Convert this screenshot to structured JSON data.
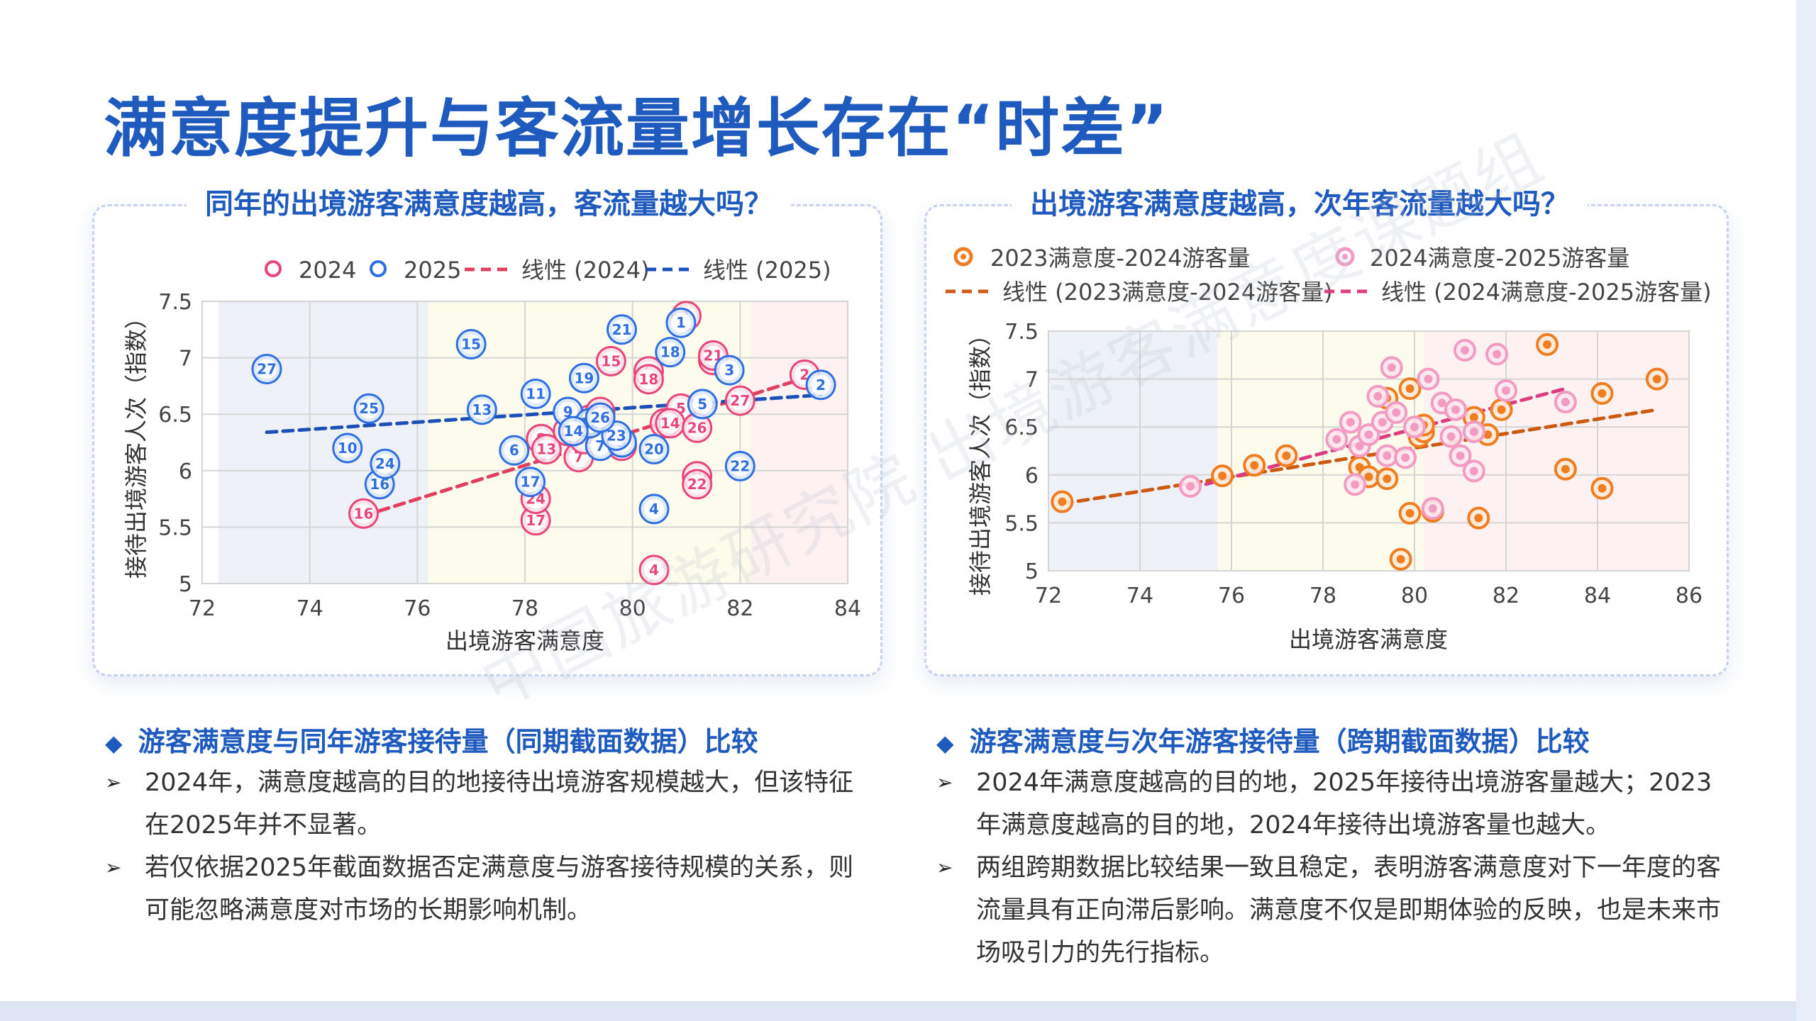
{
  "page_title": "满意度提升与客流量增长存在“时差”",
  "left_panel": {
    "title": "同年的出境游客满意度越高，客流量越大吗？",
    "heading": "游客满意度与同年游客接待量（同期截面数据）比较",
    "bullets": [
      "2024年，满意度越高的目的地接待出境游客规模越大，但该特征在2025年并不显著。",
      "若仅依据2025年截面数据否定满意度与游客接待规模的关系，则可能忽略满意度对市场的长期影响机制。"
    ]
  },
  "right_panel": {
    "title": "出境游客满意度越高，次年客流量越大吗？",
    "heading": "游客满意度与次年游客接待量（跨期截面数据）比较",
    "bullets": [
      "2024年满意度越高的目的地，2025年接待出境游客量越大；2023年满意度越高的目的地，2024年接待出境游客量也越大。",
      "两组跨期数据比较结果一致且稳定，表明游客满意度对下一年度的客流量具有正向滞后影响。满意度不仅是即期体验的反映，也是未来市场吸引力的先行指标。"
    ]
  },
  "watermark": "中国旅游研究院 出境游客满意度课题组",
  "colors": {
    "title_blue": "#1f5bbf",
    "s2024": "#e8457a",
    "s2025": "#2f6fe0",
    "trend2024": "#e0405e",
    "trend2025": "#1c50b8",
    "orange": "#ef7d22",
    "trend_orange": "#cc5a12",
    "pink_light": "#f39bc3",
    "trend_pink": "#dc3c80"
  },
  "chart_data": [
    {
      "type": "scatter",
      "xlabel": "出境游客满意度",
      "ylabel": "接待出境游客人次（指数）",
      "xlim": [
        72,
        84
      ],
      "ylim": [
        5,
        7.5
      ],
      "xticks": [
        72,
        74,
        76,
        78,
        80,
        82,
        84
      ],
      "yticks": [
        5,
        5.5,
        6,
        6.5,
        7,
        7.5
      ],
      "ytick_labels": [
        "5",
        "5.5",
        "6",
        "6.5",
        "7",
        "7.5"
      ],
      "grid": true,
      "legend_position": "top",
      "bands": [
        {
          "from": 72.3,
          "to": 76.2,
          "color": "#eef1f8"
        },
        {
          "from": 76.2,
          "to": 82.2,
          "color": "#fdfbeb"
        },
        {
          "from": 82.2,
          "to": 84,
          "color": "#fdf1f2"
        }
      ],
      "series": [
        {
          "name": "2024",
          "points": [
            {
              "id": "1",
              "x": 81.0,
              "y": 7.37
            },
            {
              "id": "2",
              "x": 83.2,
              "y": 6.85
            },
            {
              "id": "3",
              "x": 81.5,
              "y": 6.98
            },
            {
              "id": "4",
              "x": 80.4,
              "y": 5.12
            },
            {
              "id": "5",
              "x": 80.9,
              "y": 6.55
            },
            {
              "id": "6",
              "x": 80.3,
              "y": 6.88
            },
            {
              "id": "7",
              "x": 79.0,
              "y": 6.12
            },
            {
              "id": "8",
              "x": 78.3,
              "y": 6.28
            },
            {
              "id": "9",
              "x": 79.2,
              "y": 6.45
            },
            {
              "id": "10",
              "x": 79.8,
              "y": 6.22
            },
            {
              "id": "11",
              "x": 80.6,
              "y": 6.42
            },
            {
              "id": "12",
              "x": 78.8,
              "y": 6.35
            },
            {
              "id": "13",
              "x": 78.4,
              "y": 6.19
            },
            {
              "id": "14",
              "x": 80.7,
              "y": 6.42
            },
            {
              "id": "15",
              "x": 79.6,
              "y": 6.97
            },
            {
              "id": "16",
              "x": 75.0,
              "y": 5.62
            },
            {
              "id": "17",
              "x": 78.2,
              "y": 5.56
            },
            {
              "id": "18",
              "x": 80.3,
              "y": 6.81
            },
            {
              "id": "19",
              "x": 79.3,
              "y": 6.36
            },
            {
              "id": "20",
              "x": 81.2,
              "y": 5.95
            },
            {
              "id": "21",
              "x": 81.5,
              "y": 7.02
            },
            {
              "id": "22",
              "x": 81.2,
              "y": 5.88
            },
            {
              "id": "23",
              "x": 79.1,
              "y": 6.28
            },
            {
              "id": "24",
              "x": 78.2,
              "y": 5.75
            },
            {
              "id": "25",
              "x": 79.4,
              "y": 6.52
            },
            {
              "id": "26",
              "x": 81.2,
              "y": 6.38
            },
            {
              "id": "27",
              "x": 82.0,
              "y": 6.62
            }
          ]
        },
        {
          "name": "2025",
          "points": [
            {
              "id": "1",
              "x": 80.9,
              "y": 7.31
            },
            {
              "id": "2",
              "x": 83.5,
              "y": 6.76
            },
            {
              "id": "3",
              "x": 81.8,
              "y": 6.89
            },
            {
              "id": "4",
              "x": 80.4,
              "y": 5.66
            },
            {
              "id": "5",
              "x": 81.3,
              "y": 6.59
            },
            {
              "id": "6",
              "x": 77.8,
              "y": 6.18
            },
            {
              "id": "7",
              "x": 79.4,
              "y": 6.22
            },
            {
              "id": "8",
              "x": 79.8,
              "y": 6.25
            },
            {
              "id": "9",
              "x": 78.8,
              "y": 6.52
            },
            {
              "id": "10",
              "x": 74.7,
              "y": 6.2
            },
            {
              "id": "11",
              "x": 78.2,
              "y": 6.68
            },
            {
              "id": "12",
              "x": 79.2,
              "y": 6.42
            },
            {
              "id": "13",
              "x": 77.2,
              "y": 6.54
            },
            {
              "id": "14",
              "x": 78.9,
              "y": 6.35
            },
            {
              "id": "15",
              "x": 77.0,
              "y": 7.12
            },
            {
              "id": "16",
              "x": 75.3,
              "y": 5.88
            },
            {
              "id": "17",
              "x": 78.1,
              "y": 5.9
            },
            {
              "id": "18",
              "x": 80.7,
              "y": 7.05
            },
            {
              "id": "19",
              "x": 79.1,
              "y": 6.82
            },
            {
              "id": "20",
              "x": 80.4,
              "y": 6.19
            },
            {
              "id": "21",
              "x": 79.8,
              "y": 7.25
            },
            {
              "id": "22",
              "x": 82.0,
              "y": 6.04
            },
            {
              "id": "23",
              "x": 79.7,
              "y": 6.31
            },
            {
              "id": "24",
              "x": 75.4,
              "y": 6.06
            },
            {
              "id": "25",
              "x": 75.1,
              "y": 6.55
            },
            {
              "id": "26",
              "x": 79.4,
              "y": 6.47
            },
            {
              "id": "27",
              "x": 73.2,
              "y": 6.9
            }
          ]
        },
        {
          "name": "线性 (2024)",
          "type": "line",
          "x": [
            75.0,
            83.2
          ],
          "y": [
            5.6,
            6.82
          ]
        },
        {
          "name": "线性 (2025)",
          "type": "line",
          "x": [
            73.2,
            83.5
          ],
          "y": [
            6.34,
            6.67
          ]
        }
      ]
    },
    {
      "type": "scatter",
      "xlabel": "出境游客满意度",
      "ylabel": "接待出境游客人次（指数）",
      "xlim": [
        72,
        86
      ],
      "ylim": [
        5,
        7.5
      ],
      "xticks": [
        72,
        74,
        76,
        78,
        80,
        82,
        84,
        86
      ],
      "yticks": [
        5,
        5.5,
        6,
        6.5,
        7,
        7.5
      ],
      "ytick_labels": [
        "5",
        "5.5",
        "6",
        "6.5",
        "7",
        "7.5"
      ],
      "grid": true,
      "legend_position": "top",
      "bands": [
        {
          "from": 72,
          "to": 75.7,
          "color": "#eef1f8"
        },
        {
          "from": 75.7,
          "to": 80.2,
          "color": "#fdfbeb"
        },
        {
          "from": 80.2,
          "to": 86,
          "color": "#fdf1f2"
        }
      ],
      "series": [
        {
          "name": "2023满意度-2024游客量",
          "points": [
            {
              "x": 72.3,
              "y": 5.72
            },
            {
              "x": 75.8,
              "y": 5.99
            },
            {
              "x": 76.5,
              "y": 6.1
            },
            {
              "x": 77.2,
              "y": 6.2
            },
            {
              "x": 78.8,
              "y": 6.08
            },
            {
              "x": 79.0,
              "y": 5.98
            },
            {
              "x": 79.4,
              "y": 5.96
            },
            {
              "x": 79.4,
              "y": 6.8
            },
            {
              "x": 79.7,
              "y": 5.12
            },
            {
              "x": 79.9,
              "y": 6.9
            },
            {
              "x": 79.9,
              "y": 5.6
            },
            {
              "x": 80.1,
              "y": 6.4
            },
            {
              "x": 80.2,
              "y": 6.45
            },
            {
              "x": 80.4,
              "y": 5.62
            },
            {
              "x": 81.3,
              "y": 6.6
            },
            {
              "x": 81.4,
              "y": 5.55
            },
            {
              "x": 81.6,
              "y": 6.42
            },
            {
              "x": 81.9,
              "y": 6.68
            },
            {
              "x": 82.9,
              "y": 7.36
            },
            {
              "x": 83.3,
              "y": 6.06
            },
            {
              "x": 84.1,
              "y": 6.85
            },
            {
              "x": 84.1,
              "y": 5.86
            },
            {
              "x": 85.3,
              "y": 7.0
            },
            {
              "x": 80.2,
              "y": 6.52
            }
          ]
        },
        {
          "name": "2024满意度-2025游客量",
          "points": [
            {
              "x": 75.1,
              "y": 5.88
            },
            {
              "x": 78.3,
              "y": 6.37
            },
            {
              "x": 78.6,
              "y": 6.55
            },
            {
              "x": 78.7,
              "y": 5.9
            },
            {
              "x": 78.8,
              "y": 6.3
            },
            {
              "x": 79.0,
              "y": 6.42
            },
            {
              "x": 79.2,
              "y": 6.82
            },
            {
              "x": 79.3,
              "y": 6.55
            },
            {
              "x": 79.4,
              "y": 6.2
            },
            {
              "x": 79.5,
              "y": 7.12
            },
            {
              "x": 79.6,
              "y": 6.65
            },
            {
              "x": 79.8,
              "y": 6.18
            },
            {
              "x": 80.0,
              "y": 6.5
            },
            {
              "x": 80.3,
              "y": 7.0
            },
            {
              "x": 80.4,
              "y": 5.65
            },
            {
              "x": 80.6,
              "y": 6.75
            },
            {
              "x": 80.9,
              "y": 6.68
            },
            {
              "x": 81.0,
              "y": 6.2
            },
            {
              "x": 81.1,
              "y": 7.3
            },
            {
              "x": 81.3,
              "y": 6.04
            },
            {
              "x": 81.3,
              "y": 6.45
            },
            {
              "x": 81.8,
              "y": 7.26
            },
            {
              "x": 82.0,
              "y": 6.88
            },
            {
              "x": 83.3,
              "y": 6.76
            },
            {
              "x": 80.8,
              "y": 6.4
            }
          ]
        },
        {
          "name": "线性 (2023满意度-2024游客量)",
          "type": "line",
          "x": [
            72.3,
            85.3
          ],
          "y": [
            5.7,
            6.68
          ]
        },
        {
          "name": "线性 (2024满意度-2025游客量)",
          "type": "line",
          "x": [
            75.1,
            83.3
          ],
          "y": [
            5.86,
            6.9
          ]
        }
      ]
    }
  ]
}
